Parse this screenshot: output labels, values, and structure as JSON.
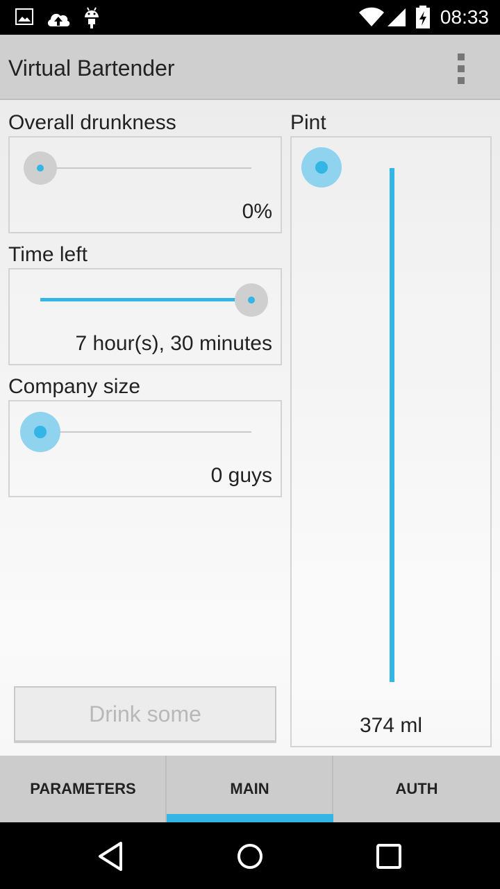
{
  "status_bar": {
    "time": "08:33",
    "icons_left": [
      "image-icon",
      "cloud-upload-icon",
      "android-icon"
    ],
    "icons_right": [
      "wifi-icon",
      "signal-icon",
      "battery-charging-icon"
    ]
  },
  "app_bar": {
    "title": "Virtual Bartender",
    "menu_icon": "overflow-menu-icon"
  },
  "main": {
    "drunkness": {
      "label": "Overall drunkness",
      "value_text": "0%",
      "level": 0
    },
    "time_left": {
      "label": "Time left",
      "value_text": "7 hour(s), 30 minutes",
      "level": 1.0
    },
    "company": {
      "label": "Company size",
      "value_text": "0 guys",
      "level": 0
    },
    "pint": {
      "label": "Pint",
      "value_text": "374 ml",
      "level": 1.0
    },
    "drink_button": "Drink some"
  },
  "tabs": [
    {
      "label": "PARAMETERS",
      "selected": false
    },
    {
      "label": "MAIN",
      "selected": true
    },
    {
      "label": "AUTH",
      "selected": false
    }
  ],
  "nav_bar": [
    "back-icon",
    "home-icon",
    "recents-icon"
  ],
  "colors": {
    "accent": "#33b5e5",
    "app_bar": "#cfcfcf",
    "tab_bar": "#cccccc"
  }
}
